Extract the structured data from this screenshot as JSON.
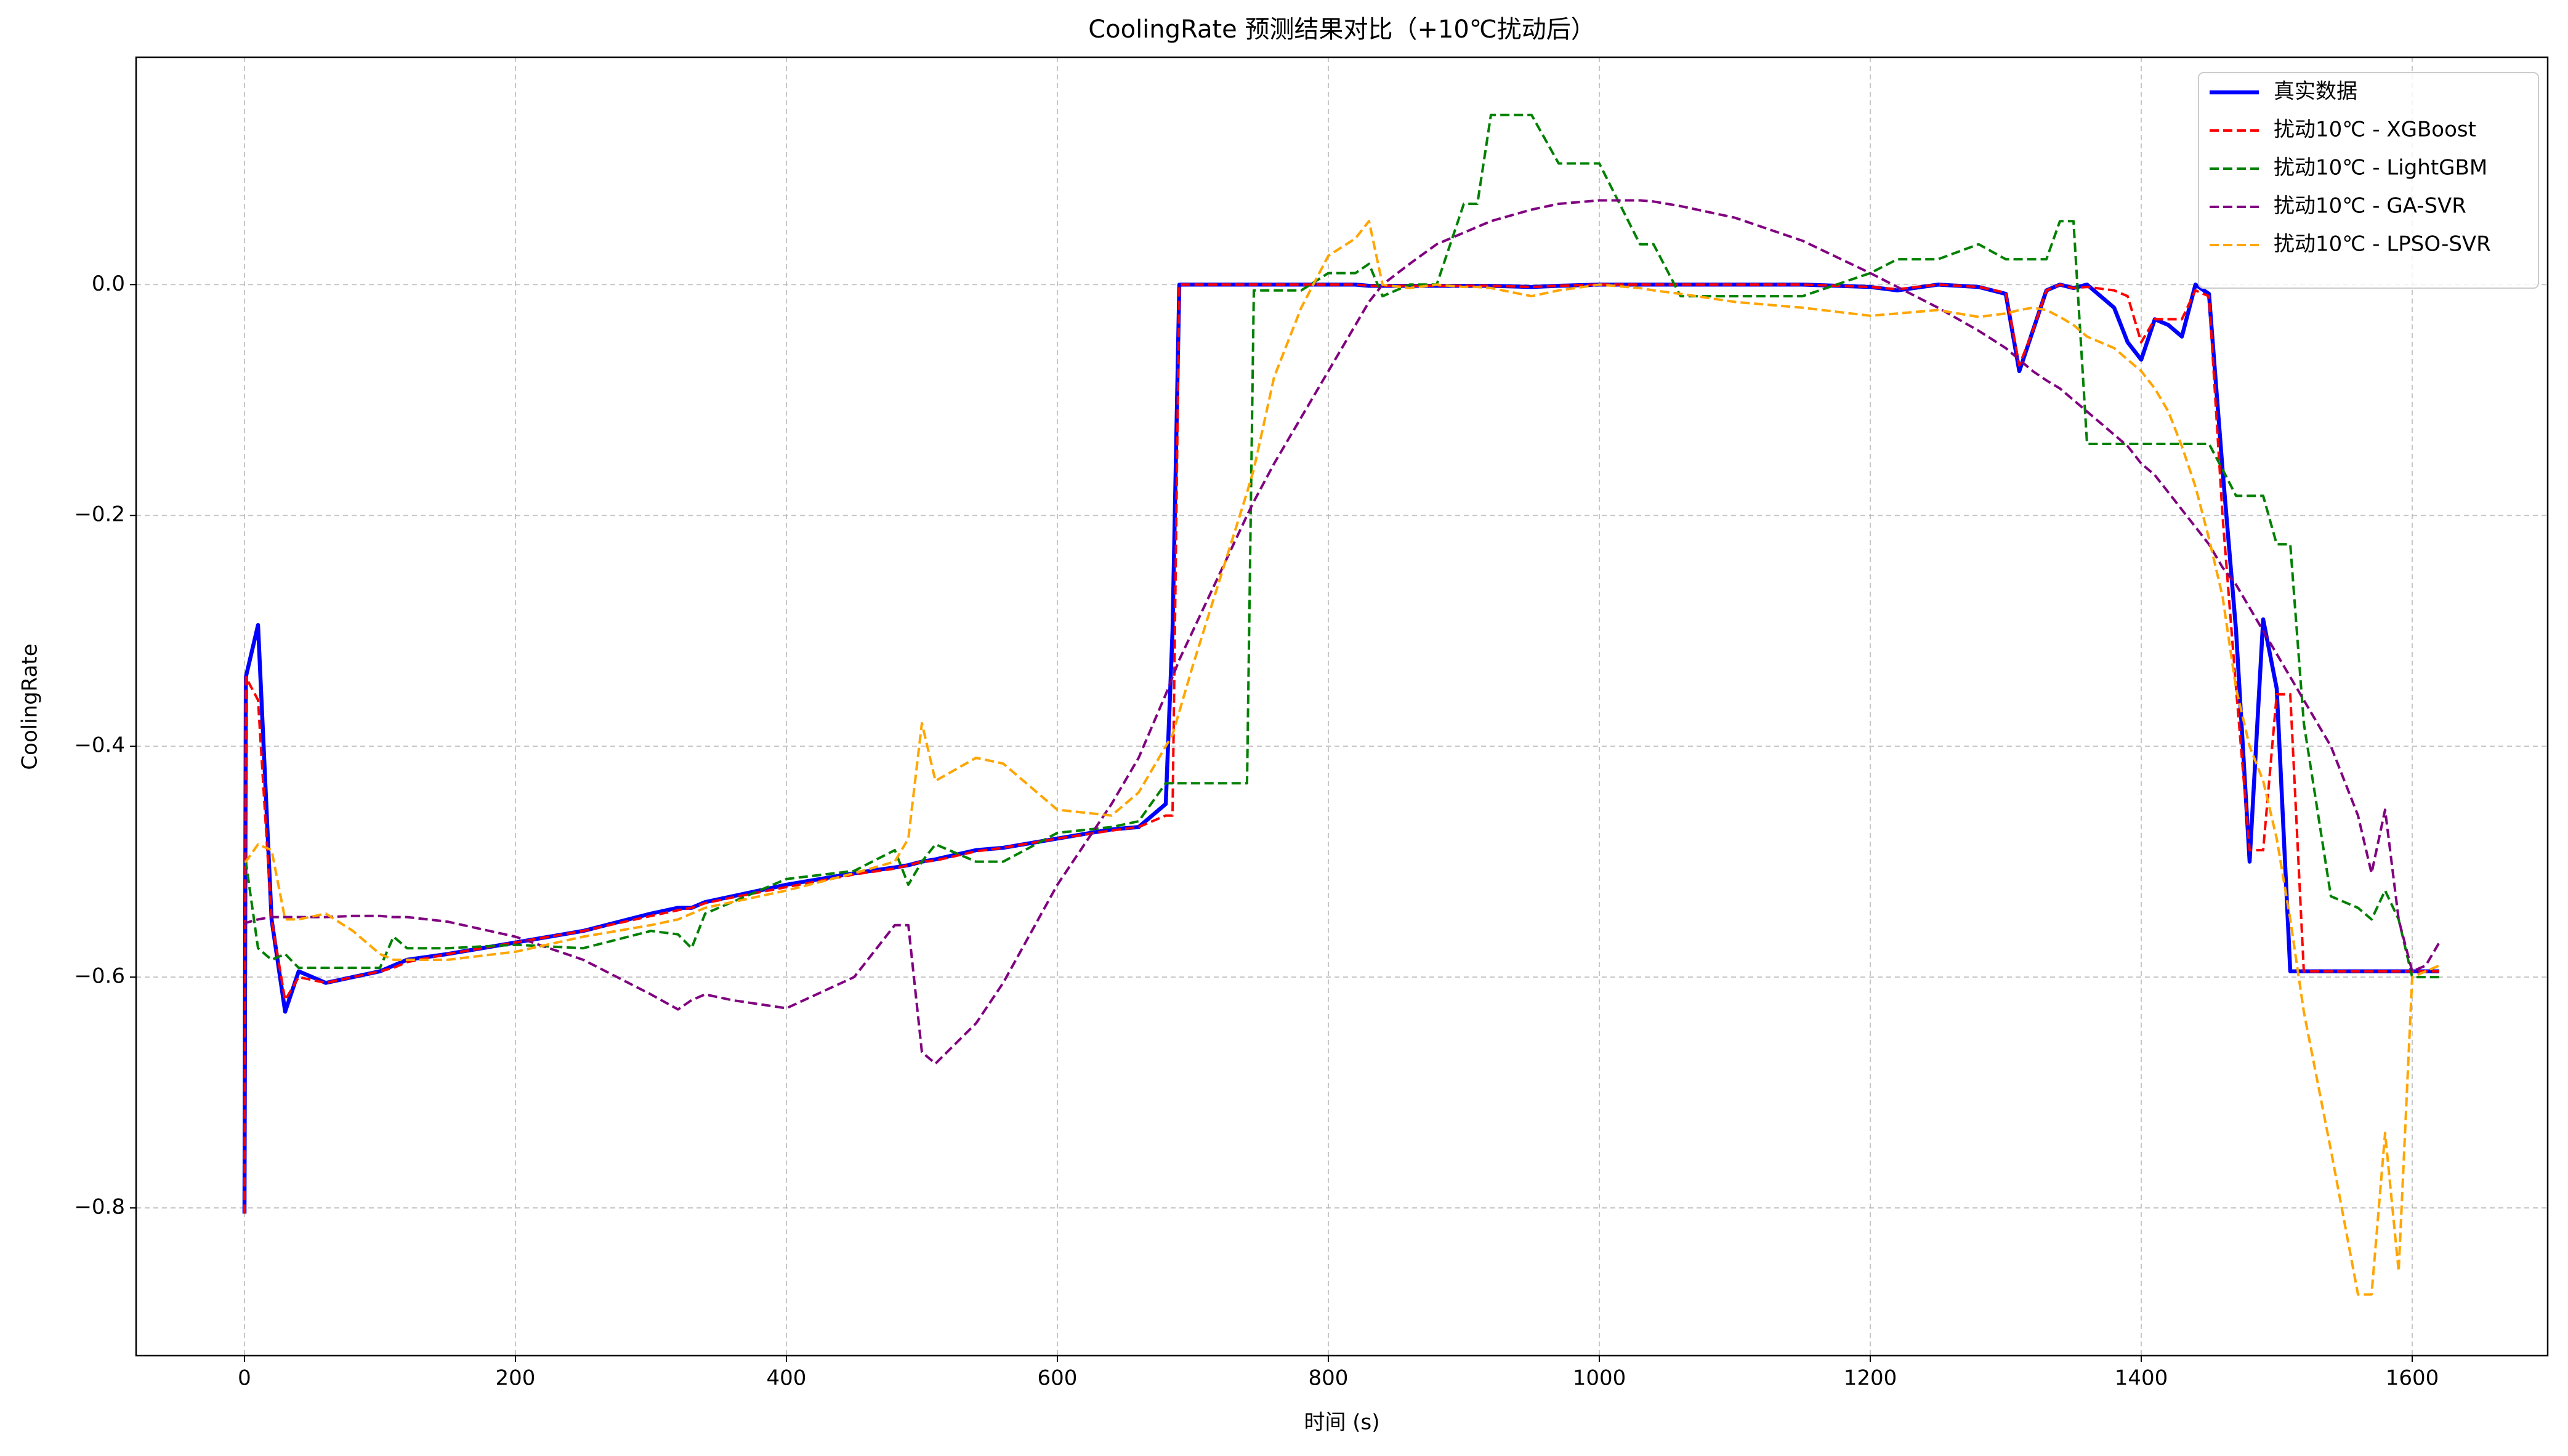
{
  "chart_data": {
    "type": "line",
    "title": "CoolingRate 预测结果对比（+10℃扰动后）",
    "x_label": "时间 (s)",
    "y_label": "CoolingRate",
    "xlim": [
      -80,
      1700
    ],
    "ylim": [
      -0.928,
      0.197
    ],
    "xticks": [
      0,
      200,
      400,
      600,
      800,
      1000,
      1200,
      1400,
      1600
    ],
    "yticks": [
      {
        "value": -0.8,
        "label": "−0.8"
      },
      {
        "value": -0.6,
        "label": "−0.6"
      },
      {
        "value": -0.4,
        "label": "−0.4"
      },
      {
        "value": -0.2,
        "label": "−0.2"
      },
      {
        "value": 0,
        "label": "0.0"
      }
    ],
    "grid": true,
    "legend": "upper right",
    "x": [
      0,
      1,
      10,
      20,
      30,
      40,
      60,
      80,
      100,
      110,
      120,
      150,
      200,
      250,
      300,
      320,
      330,
      340,
      360,
      400,
      450,
      480,
      490,
      500,
      510,
      540,
      560,
      600,
      640,
      660,
      680,
      685,
      690,
      700,
      740,
      745,
      760,
      780,
      800,
      820,
      830,
      840,
      860,
      880,
      900,
      910,
      920,
      950,
      970,
      1000,
      1030,
      1040,
      1060,
      1100,
      1150,
      1200,
      1220,
      1250,
      1280,
      1300,
      1310,
      1320,
      1330,
      1340,
      1350,
      1360,
      1380,
      1390,
      1400,
      1410,
      1420,
      1430,
      1440,
      1450,
      1460,
      1470,
      1480,
      1490,
      1500,
      1510,
      1520,
      1540,
      1560,
      1570,
      1580,
      1590,
      1600,
      1610,
      1620
    ],
    "series": [
      {
        "name": "真实数据",
        "color": "#0000ff",
        "linestyle": "solid",
        "values": [
          -0.805,
          -0.34,
          -0.295,
          -0.55,
          -0.63,
          -0.595,
          -0.605,
          -0.6,
          -0.595,
          -0.59,
          -0.585,
          -0.58,
          -0.57,
          -0.56,
          -0.545,
          -0.54,
          -0.54,
          -0.535,
          -0.53,
          -0.52,
          -0.51,
          -0.505,
          -0.503,
          -0.5,
          -0.498,
          -0.49,
          -0.488,
          -0.48,
          -0.472,
          -0.47,
          -0.45,
          -0.3,
          0,
          0,
          0,
          0,
          0,
          0,
          0,
          0,
          -0.001,
          -0.001,
          -0.001,
          -0.001,
          -0.001,
          -0.001,
          -0.001,
          -0.002,
          -0.001,
          0,
          0,
          0,
          0,
          0,
          0,
          -0.002,
          -0.005,
          0,
          -0.002,
          -0.008,
          -0.075,
          -0.04,
          -0.005,
          0,
          -0.003,
          0,
          -0.02,
          -0.05,
          -0.065,
          -0.03,
          -0.035,
          -0.045,
          0,
          -0.008,
          -0.16,
          -0.3,
          -0.5,
          -0.29,
          -0.35,
          -0.595,
          -0.595,
          -0.595,
          -0.595,
          -0.595,
          -0.595,
          -0.595,
          -0.595,
          -0.595,
          -0.595
        ]
      },
      {
        "name": "扰动10℃ - XGBoost",
        "color": "#ff0000",
        "linestyle": "dashed",
        "values": [
          -0.805,
          -0.34,
          -0.36,
          -0.55,
          -0.62,
          -0.6,
          -0.605,
          -0.6,
          -0.595,
          -0.592,
          -0.587,
          -0.58,
          -0.57,
          -0.56,
          -0.547,
          -0.542,
          -0.54,
          -0.536,
          -0.531,
          -0.522,
          -0.511,
          -0.506,
          -0.503,
          -0.5,
          -0.499,
          -0.491,
          -0.488,
          -0.48,
          -0.473,
          -0.47,
          -0.46,
          -0.46,
          0,
          0,
          0,
          0,
          0,
          0,
          0,
          0,
          -0.001,
          -0.001,
          -0.001,
          -0.001,
          -0.001,
          -0.001,
          -0.001,
          -0.002,
          -0.001,
          0,
          0,
          0,
          0,
          0,
          0,
          -0.002,
          -0.004,
          0,
          -0.002,
          -0.007,
          -0.07,
          -0.04,
          -0.005,
          0,
          -0.003,
          -0.002,
          -0.005,
          -0.01,
          -0.05,
          -0.03,
          -0.03,
          -0.03,
          -0.005,
          -0.01,
          -0.2,
          -0.35,
          -0.49,
          -0.49,
          -0.355,
          -0.355,
          -0.595,
          -0.595,
          -0.595,
          -0.595,
          -0.595,
          -0.595,
          -0.595,
          -0.595,
          -0.595
        ]
      },
      {
        "name": "扰动10℃ - LightGBM",
        "color": "#008000",
        "linestyle": "dashed",
        "values": [
          -0.5,
          -0.5,
          -0.575,
          -0.585,
          -0.58,
          -0.592,
          -0.592,
          -0.592,
          -0.592,
          -0.565,
          -0.575,
          -0.575,
          -0.572,
          -0.575,
          -0.56,
          -0.563,
          -0.575,
          -0.545,
          -0.535,
          -0.515,
          -0.508,
          -0.49,
          -0.52,
          -0.5,
          -0.485,
          -0.5,
          -0.5,
          -0.475,
          -0.47,
          -0.465,
          -0.432,
          -0.432,
          -0.432,
          -0.432,
          -0.432,
          -0.005,
          -0.005,
          -0.005,
          0.01,
          0.01,
          0.018,
          -0.01,
          0,
          0,
          0.07,
          0.07,
          0.147,
          0.147,
          0.105,
          0.105,
          0.035,
          0.035,
          -0.01,
          -0.01,
          -0.01,
          0.01,
          0.022,
          0.022,
          0.035,
          0.022,
          0.022,
          0.022,
          0.022,
          0.055,
          0.055,
          -0.138,
          -0.138,
          -0.138,
          -0.138,
          -0.138,
          -0.138,
          -0.138,
          -0.138,
          -0.138,
          -0.16,
          -0.183,
          -0.183,
          -0.183,
          -0.225,
          -0.225,
          -0.38,
          -0.53,
          -0.54,
          -0.55,
          -0.525,
          -0.55,
          -0.6,
          -0.6,
          -0.6
        ]
      },
      {
        "name": "扰动10℃ - GA-SVR",
        "color": "#800080",
        "linestyle": "dashed",
        "values": [
          -0.555,
          -0.553,
          -0.55,
          -0.548,
          -0.548,
          -0.548,
          -0.548,
          -0.547,
          -0.547,
          -0.548,
          -0.548,
          -0.552,
          -0.565,
          -0.585,
          -0.615,
          -0.628,
          -0.62,
          -0.615,
          -0.62,
          -0.627,
          -0.6,
          -0.555,
          -0.555,
          -0.665,
          -0.675,
          -0.64,
          -0.605,
          -0.52,
          -0.45,
          -0.41,
          -0.355,
          -0.34,
          -0.325,
          -0.3,
          -0.2,
          -0.188,
          -0.155,
          -0.115,
          -0.075,
          -0.035,
          -0.015,
          0,
          0.018,
          0.035,
          0.045,
          0.05,
          0.055,
          0.065,
          0.07,
          0.073,
          0.073,
          0.072,
          0.068,
          0.058,
          0.038,
          0.01,
          -0.002,
          -0.02,
          -0.04,
          -0.055,
          -0.065,
          -0.075,
          -0.083,
          -0.09,
          -0.1,
          -0.11,
          -0.13,
          -0.14,
          -0.155,
          -0.165,
          -0.18,
          -0.195,
          -0.21,
          -0.225,
          -0.245,
          -0.26,
          -0.28,
          -0.3,
          -0.32,
          -0.34,
          -0.36,
          -0.4,
          -0.46,
          -0.51,
          -0.455,
          -0.55,
          -0.595,
          -0.59,
          -0.57
        ]
      },
      {
        "name": "扰动10℃ - LPSO-SVR",
        "color": "#ffa500",
        "linestyle": "dashed",
        "values": [
          -0.5,
          -0.5,
          -0.485,
          -0.49,
          -0.55,
          -0.55,
          -0.545,
          -0.56,
          -0.58,
          -0.585,
          -0.585,
          -0.585,
          -0.578,
          -0.565,
          -0.555,
          -0.55,
          -0.545,
          -0.54,
          -0.535,
          -0.525,
          -0.51,
          -0.5,
          -0.48,
          -0.38,
          -0.43,
          -0.41,
          -0.415,
          -0.455,
          -0.46,
          -0.44,
          -0.4,
          -0.39,
          -0.37,
          -0.33,
          -0.18,
          -0.16,
          -0.08,
          -0.02,
          0.025,
          0.04,
          0.055,
          0,
          -0.003,
          0,
          -0.002,
          -0.002,
          -0.003,
          -0.01,
          -0.005,
          0,
          -0.003,
          -0.005,
          -0.008,
          -0.015,
          -0.02,
          -0.027,
          -0.025,
          -0.022,
          -0.028,
          -0.025,
          -0.022,
          -0.02,
          -0.022,
          -0.028,
          -0.035,
          -0.045,
          -0.055,
          -0.065,
          -0.075,
          -0.09,
          -0.11,
          -0.14,
          -0.175,
          -0.22,
          -0.27,
          -0.35,
          -0.4,
          -0.43,
          -0.48,
          -0.55,
          -0.63,
          -0.75,
          -0.875,
          -0.875,
          -0.735,
          -0.855,
          -0.6,
          -0.595,
          -0.59
        ]
      }
    ]
  }
}
